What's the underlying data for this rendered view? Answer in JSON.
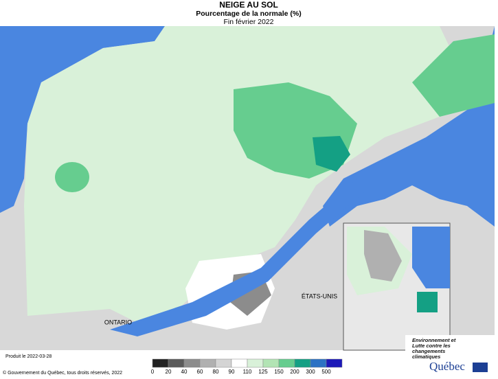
{
  "header": {
    "title": "NEIGE AU SOL",
    "subtitle": "Pourcentage de la normale (%)",
    "date": "Fin février 2022"
  },
  "map": {
    "labels": [
      "ONTARIO",
      "ÉTATS-UNIS"
    ]
  },
  "legend": {
    "ticks": [
      0,
      20,
      40,
      60,
      80,
      90,
      110,
      125,
      150,
      200,
      300,
      500
    ],
    "colors": [
      "#222222",
      "#5a5a5a",
      "#8c8c8c",
      "#b0b0b0",
      "#d4d4d4",
      "#ffffff",
      "#d9f1d9",
      "#b2e4b4",
      "#66cd8f",
      "#14a084",
      "#2c72c4",
      "#1c18b8"
    ]
  },
  "footer": {
    "produced": "Produit le 2022-03-28",
    "copyright": "© Gouvernement du Québec, tous droits réservés, 2022"
  },
  "logo": {
    "text": "Environnement et Lutte contre les changements climatiques",
    "name": "Québec"
  }
}
